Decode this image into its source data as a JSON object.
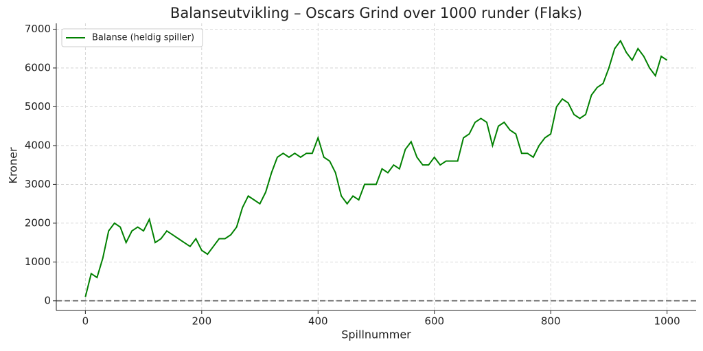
{
  "chart_data": {
    "type": "line",
    "title": "Balanseutvikling – Oscars Grind over 1000 runder (Flaks)",
    "x_label": "Spillnummer",
    "y_label": "Kroner",
    "x": [
      0,
      10,
      20,
      30,
      40,
      50,
      60,
      70,
      80,
      90,
      100,
      110,
      120,
      130,
      140,
      150,
      160,
      170,
      180,
      190,
      200,
      210,
      220,
      230,
      240,
      250,
      260,
      270,
      280,
      290,
      300,
      310,
      320,
      330,
      340,
      350,
      360,
      370,
      380,
      390,
      400,
      410,
      420,
      430,
      440,
      450,
      460,
      470,
      480,
      490,
      500,
      510,
      520,
      530,
      540,
      550,
      560,
      570,
      580,
      590,
      600,
      610,
      620,
      630,
      640,
      650,
      660,
      670,
      680,
      690,
      700,
      710,
      720,
      730,
      740,
      750,
      760,
      770,
      780,
      790,
      800,
      810,
      820,
      830,
      840,
      850,
      860,
      870,
      880,
      890,
      900,
      910,
      920,
      930,
      940,
      950,
      960,
      970,
      980,
      990,
      1000
    ],
    "series": [
      {
        "name": "Balanse (heldig spiller)",
        "color": "#008000",
        "values": [
          100,
          700,
          600,
          1100,
          1800,
          2000,
          1900,
          1500,
          1800,
          1900,
          1800,
          2100,
          1500,
          1600,
          1800,
          1700,
          1600,
          1500,
          1400,
          1600,
          1300,
          1200,
          1400,
          1600,
          1600,
          1700,
          1900,
          2400,
          2700,
          2600,
          2500,
          2800,
          3300,
          3700,
          3800,
          3700,
          3800,
          3700,
          3800,
          3800,
          4200,
          3700,
          3600,
          3300,
          2700,
          2500,
          2700,
          2600,
          3000,
          3000,
          3000,
          3400,
          3300,
          3500,
          3400,
          3900,
          4100,
          3700,
          3500,
          3500,
          3700,
          3500,
          3600,
          3600,
          3600,
          4200,
          4300,
          4600,
          4700,
          4600,
          4000,
          4500,
          4600,
          4400,
          4300,
          3800,
          3800,
          3700,
          4000,
          4200,
          4300,
          5000,
          5200,
          5100,
          4800,
          4700,
          4800,
          5300,
          5500,
          5600,
          6000,
          6500,
          6700,
          6400,
          6200,
          6500,
          6300,
          6000,
          5800,
          6300,
          6200
        ]
      }
    ],
    "reference_line": 0,
    "xlim": [
      -50,
      1050
    ],
    "ylim": [
      -250,
      7150
    ],
    "xticks": [
      0,
      200,
      400,
      600,
      800,
      1000
    ],
    "yticks": [
      0,
      1000,
      2000,
      3000,
      4000,
      5000,
      6000,
      7000
    ],
    "grid": true,
    "legend": "upper-left"
  }
}
